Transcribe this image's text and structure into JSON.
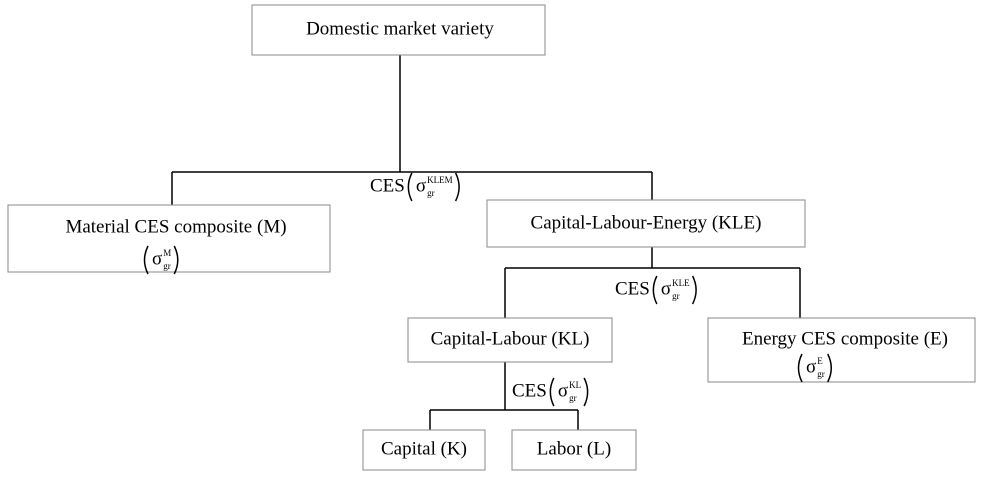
{
  "nodes": [
    {
      "label": "Domestic market variety"
    },
    {
      "label": "Material CES composite (M)",
      "sigma": {
        "symbol": "σ",
        "sup": "M",
        "sub": "gr"
      }
    },
    {
      "label": "Capital-Labour-Energy (KLE)"
    },
    {
      "label": "Capital-Labour (KL)"
    },
    {
      "label": "Energy CES composite (E)",
      "sigma": {
        "symbol": "σ",
        "sup": "E",
        "sub": "gr"
      }
    },
    {
      "label": "Capital (K)"
    },
    {
      "label": "Labor (L)"
    }
  ],
  "ces": [
    {
      "prefix": "CES",
      "symbol": "σ",
      "sup": "KLEM",
      "sub": "gr"
    },
    {
      "prefix": "CES",
      "symbol": "σ",
      "sup": "KLE",
      "sub": "gr"
    },
    {
      "prefix": "CES",
      "symbol": "σ",
      "sup": "KL",
      "sub": "gr"
    }
  ]
}
